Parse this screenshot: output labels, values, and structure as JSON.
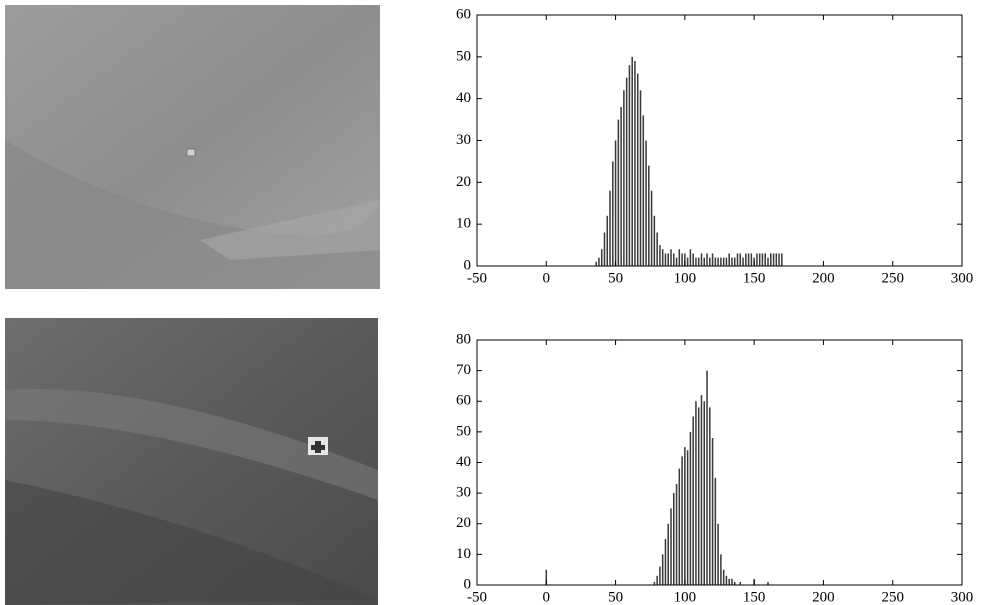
{
  "chart_data": [
    {
      "type": "bar",
      "color": "#3a3a3a",
      "x": [
        36,
        38,
        40,
        42,
        44,
        46,
        48,
        50,
        52,
        54,
        56,
        58,
        60,
        62,
        64,
        66,
        68,
        70,
        72,
        74,
        76,
        78,
        80,
        82,
        84,
        86,
        88,
        90,
        92,
        94,
        96,
        98,
        100,
        102,
        104,
        106,
        108,
        110,
        112,
        114,
        116,
        118,
        120,
        122,
        124,
        126,
        128,
        130,
        132,
        134,
        136,
        138,
        140,
        142,
        144,
        146,
        148,
        150,
        152,
        154,
        156,
        158,
        160,
        162,
        164,
        166,
        168,
        170
      ],
      "values": [
        1,
        2,
        4,
        8,
        12,
        18,
        25,
        30,
        35,
        38,
        42,
        45,
        48,
        50,
        49,
        46,
        42,
        36,
        30,
        24,
        18,
        12,
        8,
        5,
        4,
        3,
        3,
        4,
        3,
        2,
        4,
        3,
        3,
        2,
        4,
        3,
        2,
        2,
        3,
        2,
        3,
        2,
        3,
        2,
        2,
        2,
        2,
        2,
        3,
        2,
        2,
        3,
        3,
        2,
        3,
        3,
        3,
        2,
        3,
        3,
        3,
        3,
        2,
        3,
        3,
        3,
        3,
        3
      ],
      "xlim": [
        -50,
        300
      ],
      "xticks": [
        -50,
        0,
        50,
        100,
        150,
        200,
        250,
        300
      ],
      "ylim": [
        0,
        60
      ],
      "yticks": [
        0,
        10,
        20,
        30,
        40,
        50,
        60
      ]
    },
    {
      "type": "bar",
      "color": "#3a3a3a",
      "x": [
        0,
        78,
        80,
        82,
        84,
        86,
        88,
        90,
        92,
        94,
        96,
        98,
        100,
        102,
        104,
        106,
        108,
        110,
        112,
        114,
        116,
        118,
        120,
        122,
        124,
        126,
        128,
        130,
        132,
        134,
        136,
        140,
        150,
        160
      ],
      "values": [
        5,
        1,
        3,
        6,
        10,
        15,
        20,
        25,
        30,
        33,
        38,
        42,
        45,
        44,
        50,
        55,
        60,
        58,
        62,
        60,
        70,
        58,
        48,
        35,
        20,
        10,
        5,
        3,
        2,
        2,
        1,
        1,
        2,
        1
      ],
      "xlim": [
        -50,
        300
      ],
      "xticks": [
        -50,
        0,
        50,
        100,
        150,
        200,
        250,
        300
      ],
      "ylim": [
        0,
        80
      ],
      "yticks": [
        0,
        10,
        20,
        30,
        40,
        50,
        60,
        70,
        80
      ]
    }
  ]
}
